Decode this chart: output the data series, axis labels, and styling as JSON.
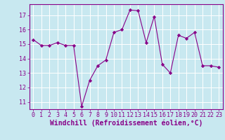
{
  "x": [
    0,
    1,
    2,
    3,
    4,
    5,
    6,
    7,
    8,
    9,
    10,
    11,
    12,
    13,
    14,
    15,
    16,
    17,
    18,
    19,
    20,
    21,
    22,
    23
  ],
  "y": [
    15.3,
    14.9,
    14.9,
    15.1,
    14.9,
    14.9,
    10.7,
    12.5,
    13.5,
    13.9,
    15.8,
    16.0,
    17.35,
    17.3,
    15.1,
    16.9,
    13.6,
    13.0,
    15.6,
    15.4,
    15.8,
    13.5,
    13.5,
    13.4
  ],
  "line_color": "#880088",
  "marker": "D",
  "marker_size": 2.2,
  "bg_color": "#c8e8f0",
  "grid_color": "#ffffff",
  "xlabel": "Windchill (Refroidissement éolien,°C)",
  "ylim": [
    10.5,
    17.75
  ],
  "xlim": [
    -0.5,
    23.5
  ],
  "yticks": [
    11,
    12,
    13,
    14,
    15,
    16,
    17
  ],
  "xticks": [
    0,
    1,
    2,
    3,
    4,
    5,
    6,
    7,
    8,
    9,
    10,
    11,
    12,
    13,
    14,
    15,
    16,
    17,
    18,
    19,
    20,
    21,
    22,
    23
  ],
  "tick_label_fontsize": 6.0,
  "xlabel_fontsize": 7.0,
  "axis_color": "#880088",
  "linewidth": 0.8
}
